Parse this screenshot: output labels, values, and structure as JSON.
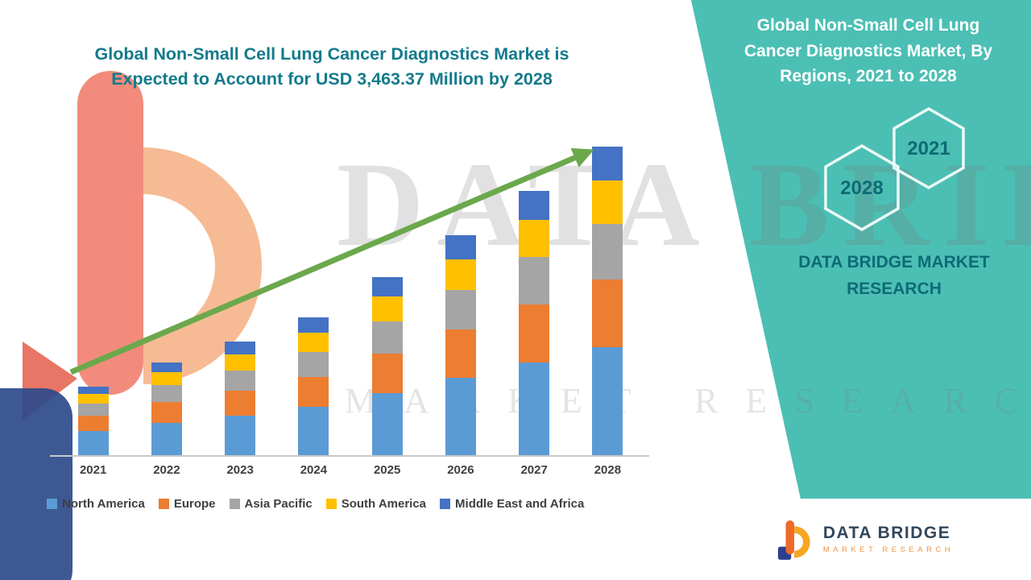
{
  "header": {
    "title": "Global Non-Small Cell Lung Cancer Diagnostics Market is Expected to Account for USD 3,463.37 Million by 2028"
  },
  "watermark": {
    "line1": "DATA BRIDGE",
    "line2": "MARKET RESEARCH"
  },
  "side_panel": {
    "heading": "Global Non-Small Cell Lung Cancer Diagnostics Market, By Regions, 2021 to 2028",
    "hex_labels": {
      "front": "2021",
      "back": "2028"
    },
    "brand": "DATA BRIDGE MARKET RESEARCH",
    "accent_color": "#4CBFB4",
    "text_color": "#0E6B76"
  },
  "logo_card": {
    "brand": "DATA BRIDGE",
    "tagline": "MARKET RESEARCH"
  },
  "chart_data": {
    "type": "bar",
    "stacked": true,
    "title": "Global Non-Small Cell Lung Cancer Diagnostics Market is Expected to Account for USD 3,463.37 Million by 2028",
    "unit": "USD Million",
    "categories": [
      "2021",
      "2022",
      "2023",
      "2024",
      "2025",
      "2026",
      "2027",
      "2028"
    ],
    "series": [
      {
        "name": "North America",
        "color": "#5B9BD5",
        "values": [
          270,
          365,
          445,
          540,
          700,
          865,
          1040,
          1210
        ]
      },
      {
        "name": "Europe",
        "color": "#ED7D31",
        "values": [
          170,
          230,
          280,
          340,
          440,
          545,
          655,
          762
        ]
      },
      {
        "name": "Asia Pacific",
        "color": "#A5A5A5",
        "values": [
          140,
          188,
          229,
          278,
          359,
          444,
          534,
          623
        ]
      },
      {
        "name": "South America",
        "color": "#FFC000",
        "values": [
          108,
          146,
          178,
          216,
          279,
          345,
          415,
          485
        ]
      },
      {
        "name": "Middle East and Africa",
        "color": "#4472C4",
        "values": [
          85,
          115,
          140,
          170,
          219,
          271,
          326,
          383.37
        ]
      }
    ],
    "totals_note": "2028 total = 3463.37",
    "ylim": [
      0,
      3500
    ],
    "grid": false,
    "legend_position": "bottom",
    "trend_arrow": true,
    "trend_arrow_color": "#6BA84C"
  }
}
